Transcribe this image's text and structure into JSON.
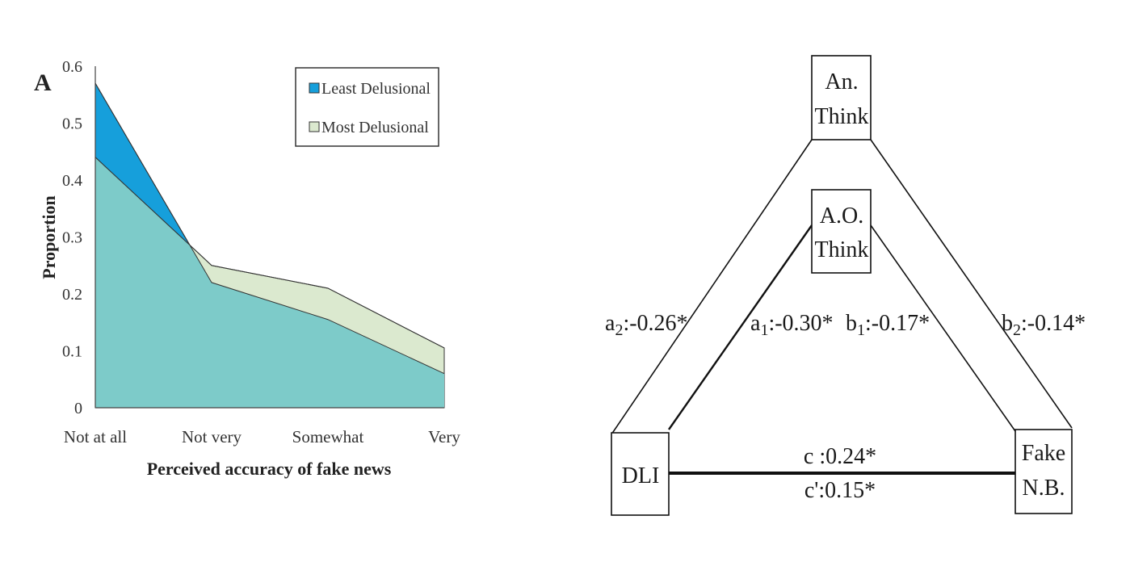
{
  "chart_data": {
    "type": "area",
    "panel_label": "A",
    "categories": [
      "Not at all",
      "Not very",
      "Somewhat",
      "Very"
    ],
    "xlabel": "Perceived accuracy of fake news",
    "ylabel": "Proportion",
    "ylim": [
      0,
      0.6
    ],
    "yticks": [
      "0",
      "0.1",
      "0.2",
      "0.3",
      "0.4",
      "0.5",
      "0.6"
    ],
    "legend_position": "top-right",
    "series": [
      {
        "name": "Least Delusional",
        "values": [
          0.57,
          0.22,
          0.155,
          0.06
        ],
        "color": "#169fdb"
      },
      {
        "name": "Most Delusional",
        "values": [
          0.44,
          0.25,
          0.21,
          0.105
        ],
        "color": "#dbe9cf"
      }
    ],
    "overlap_color": "#7dcbc9"
  },
  "diagram": {
    "nodes": {
      "an_think": [
        "An.",
        "Think"
      ],
      "ao_think": [
        "A.O.",
        "Think"
      ],
      "dli": [
        "DLI"
      ],
      "fake_nb": [
        "Fake",
        "N.B."
      ]
    },
    "paths": {
      "a2": {
        "letter": "a",
        "sub": "2",
        "value": ":-0.26*"
      },
      "a1": {
        "letter": "a",
        "sub": "1",
        "value": ":-0.30*"
      },
      "b1": {
        "letter": "b",
        "sub": "1",
        "value": ":-0.17*"
      },
      "b2": {
        "letter": "b",
        "sub": "2",
        "value": ":-0.14*"
      },
      "c": "c :0.24*",
      "c_prime": "c':0.15*"
    }
  }
}
